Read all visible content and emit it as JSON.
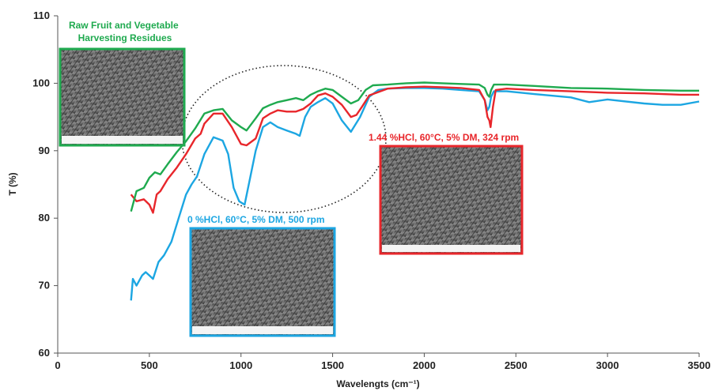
{
  "chart_data": {
    "type": "line",
    "xlabel": "Wavelengts (cm⁻¹)",
    "ylabel": "T (%)",
    "xlim": [
      0,
      3500
    ],
    "ylim": [
      60,
      110
    ],
    "xticks": [
      "0",
      "500",
      "1000",
      "1500",
      "2000",
      "2500",
      "3000",
      "3500"
    ],
    "yticks": [
      "60",
      "70",
      "80",
      "90",
      "100",
      "110"
    ],
    "grid": false,
    "series": [
      {
        "color": "#1faa4f",
        "x": [
          400,
          430,
          470,
          500,
          530,
          560,
          600,
          650,
          700,
          750,
          800,
          850,
          900,
          950,
          1000,
          1030,
          1080,
          1120,
          1160,
          1200,
          1250,
          1300,
          1340,
          1380,
          1420,
          1460,
          1500,
          1550,
          1600,
          1640,
          1680,
          1720,
          1800,
          1900,
          2000,
          2100,
          2200,
          2300,
          2330,
          2345,
          2355,
          2365,
          2380,
          2450,
          2600,
          2800,
          3000,
          3200,
          3400,
          3500
        ],
        "y": [
          81,
          84,
          84.5,
          86,
          86.8,
          86.5,
          88,
          89.8,
          91.4,
          93.3,
          95.5,
          96.0,
          96.2,
          94.5,
          93.5,
          93.0,
          94.8,
          96.3,
          96.8,
          97.2,
          97.5,
          97.8,
          97.5,
          98.3,
          98.8,
          99.2,
          99.0,
          98.0,
          97.0,
          97.5,
          99.0,
          99.7,
          99.8,
          100.0,
          100.1,
          100.0,
          99.9,
          99.8,
          99.3,
          98.3,
          98.0,
          99.0,
          99.8,
          99.8,
          99.6,
          99.3,
          99.2,
          99.0,
          98.9,
          98.9
        ]
      },
      {
        "color": "#e8262b",
        "x": [
          400,
          430,
          470,
          500,
          520,
          540,
          560,
          600,
          650,
          700,
          750,
          780,
          800,
          850,
          900,
          950,
          1000,
          1030,
          1080,
          1120,
          1160,
          1200,
          1250,
          1300,
          1340,
          1380,
          1420,
          1460,
          1500,
          1550,
          1600,
          1630,
          1660,
          1700,
          1800,
          1900,
          2000,
          2100,
          2200,
          2300,
          2330,
          2345,
          2355,
          2362,
          2375,
          2390,
          2450,
          2600,
          2800,
          3000,
          3200,
          3400,
          3500
        ],
        "y": [
          83.5,
          82.5,
          82.8,
          82.0,
          80.8,
          83.5,
          84.0,
          85.8,
          87.5,
          89.5,
          91.8,
          92.5,
          94.0,
          95.5,
          95.5,
          93.5,
          91.0,
          90.8,
          91.8,
          94.8,
          95.5,
          96.0,
          95.8,
          95.8,
          96.2,
          97.0,
          98.2,
          98.5,
          98.0,
          96.8,
          95.0,
          95.3,
          96.5,
          98.2,
          99.2,
          99.4,
          99.5,
          99.4,
          99.3,
          99.0,
          97.5,
          95.0,
          94.5,
          93.5,
          96.5,
          99.0,
          99.2,
          99.0,
          98.8,
          98.6,
          98.5,
          98.3,
          98.3
        ]
      },
      {
        "color": "#1ca6e2",
        "x": [
          400,
          410,
          430,
          460,
          480,
          500,
          520,
          550,
          580,
          620,
          660,
          700,
          730,
          760,
          800,
          850,
          900,
          930,
          960,
          990,
          1020,
          1050,
          1080,
          1120,
          1160,
          1200,
          1250,
          1300,
          1320,
          1350,
          1380,
          1420,
          1460,
          1500,
          1550,
          1600,
          1650,
          1700,
          1750,
          1800,
          1900,
          2000,
          2100,
          2200,
          2300,
          2330,
          2345,
          2355,
          2365,
          2380,
          2450,
          2600,
          2800,
          2900,
          3000,
          3200,
          3300,
          3400,
          3500
        ],
        "y": [
          67.8,
          71.0,
          70.0,
          71.5,
          72.0,
          71.5,
          71.0,
          73.5,
          74.5,
          76.5,
          80.0,
          83.5,
          85.0,
          86.2,
          89.5,
          92.0,
          91.5,
          89.5,
          84.5,
          82.5,
          82.0,
          86.0,
          90.0,
          93.5,
          94.2,
          93.5,
          93.0,
          92.5,
          92.2,
          95.0,
          96.5,
          97.2,
          97.8,
          97.0,
          94.5,
          92.8,
          95.0,
          98.0,
          99.0,
          99.2,
          99.3,
          99.3,
          99.2,
          99.0,
          98.8,
          97.5,
          96.0,
          96.5,
          98.0,
          98.8,
          98.8,
          98.4,
          97.9,
          97.2,
          97.6,
          97.0,
          96.8,
          96.8,
          97.3
        ]
      }
    ],
    "annotations": [
      {
        "lines": [
          "Raw Fruit and Vegetable",
          "Harvesting Residues"
        ],
        "color": "#1faa4f"
      },
      {
        "lines": [
          "1.44 %HCl, 60°C, 5% DM, 324 rpm"
        ],
        "color": "#e8262b"
      },
      {
        "lines": [
          "0 %HCl, 60°C, 5% DM, 500 rpm"
        ],
        "color": "#1ca6e2"
      }
    ],
    "insets": [
      {
        "color": "#1faa4f"
      },
      {
        "color": "#e8262b"
      },
      {
        "color": "#1ca6e2"
      }
    ]
  }
}
